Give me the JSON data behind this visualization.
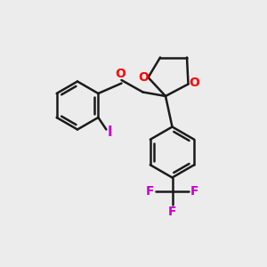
{
  "bg_color": "#ececec",
  "bond_color": "#1a1a1a",
  "oxygen_color": "#ff0000",
  "iodine_color": "#cc00cc",
  "fluorine_color": "#cc00cc",
  "bond_width": 1.8,
  "figsize": [
    3.0,
    3.0
  ],
  "dpi": 100,
  "xlim": [
    0,
    10
  ],
  "ylim": [
    0,
    10
  ]
}
